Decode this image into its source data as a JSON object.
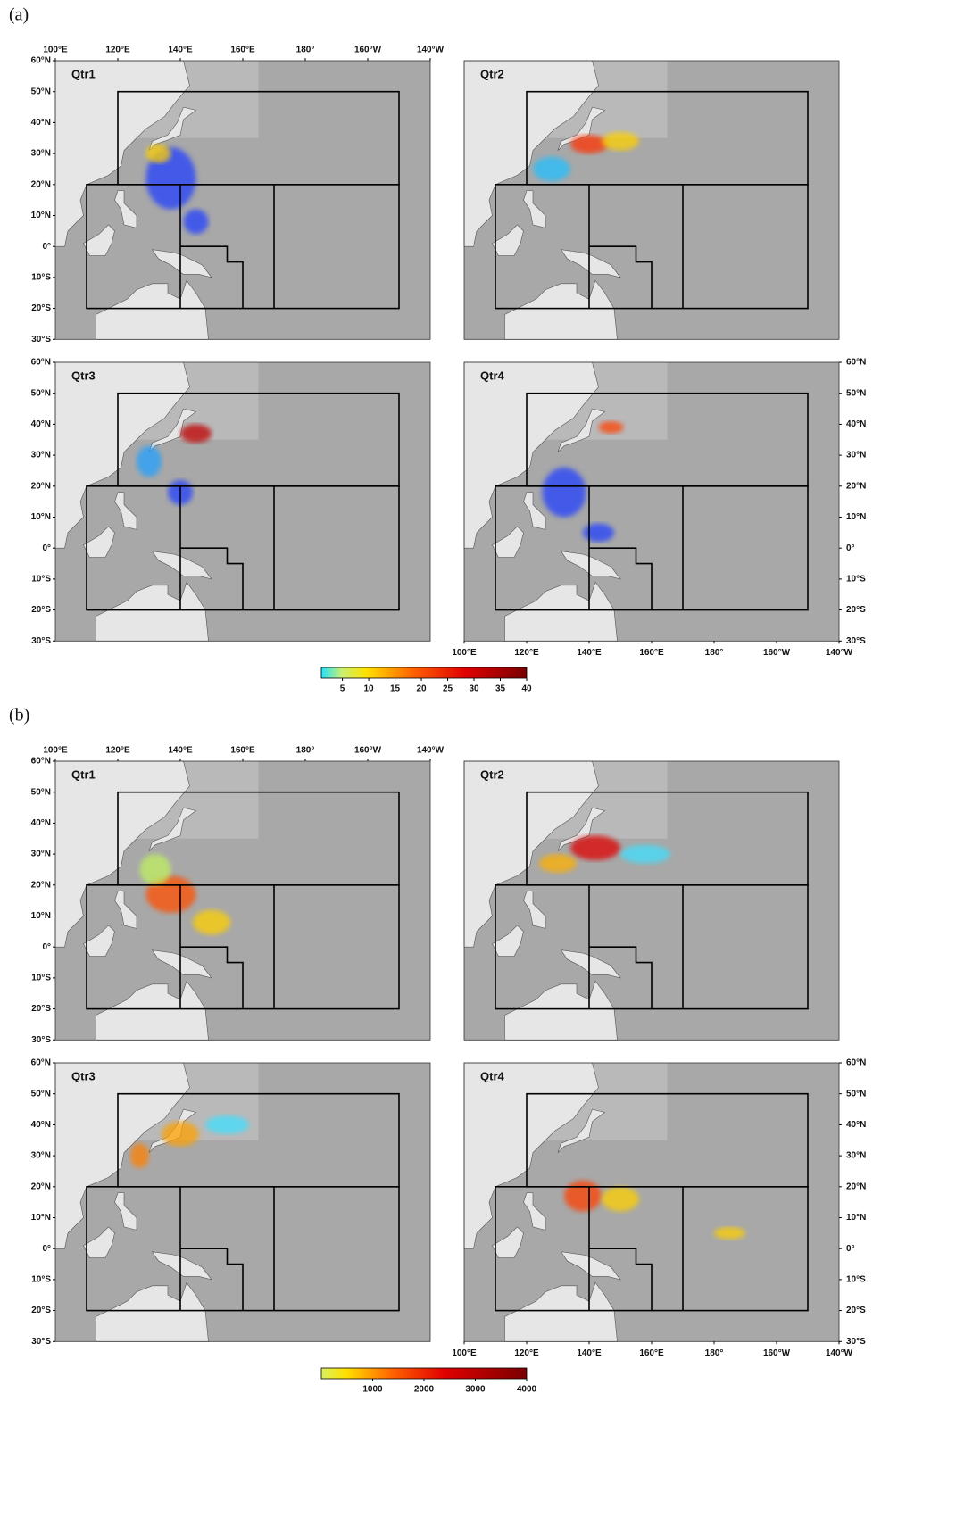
{
  "panels": [
    {
      "label": "(a)",
      "maps": [
        {
          "title": "Qtr1"
        },
        {
          "title": "Qtr2"
        },
        {
          "title": "Qtr3"
        },
        {
          "title": "Qtr4"
        }
      ],
      "colorbar": {
        "lim": [
          1,
          40
        ],
        "ticks": [
          5,
          10,
          15,
          20,
          25,
          30,
          35,
          40
        ]
      }
    },
    {
      "label": "(b)",
      "maps": [
        {
          "title": "Qtr1"
        },
        {
          "title": "Qtr2"
        },
        {
          "title": "Qtr3"
        },
        {
          "title": "Qtr4"
        }
      ],
      "colorbar": {
        "lim": [
          0,
          4000
        ],
        "ticks": [
          1000,
          2000,
          3000,
          4000
        ]
      }
    }
  ],
  "lon_ticks": [
    {
      "value": 100,
      "label": "100°E"
    },
    {
      "value": 120,
      "label": "120°E"
    },
    {
      "value": 140,
      "label": "140°E"
    },
    {
      "value": 160,
      "label": "160°E"
    },
    {
      "value": 180,
      "label": "180°"
    },
    {
      "value": 200,
      "label": "160°W"
    },
    {
      "value": 220,
      "label": "140°W"
    }
  ],
  "lat_ticks": [
    {
      "value": 60,
      "label": "60°N"
    },
    {
      "value": 50,
      "label": "50°N"
    },
    {
      "value": 40,
      "label": "40°N"
    },
    {
      "value": 30,
      "label": "30°N"
    },
    {
      "value": 20,
      "label": "20°N"
    },
    {
      "value": 10,
      "label": "10°N"
    },
    {
      "value": 0,
      "label": "0°"
    },
    {
      "value": -10,
      "label": "10°S"
    },
    {
      "value": -20,
      "label": "20°S"
    },
    {
      "value": -30,
      "label": "30°S"
    }
  ]
}
